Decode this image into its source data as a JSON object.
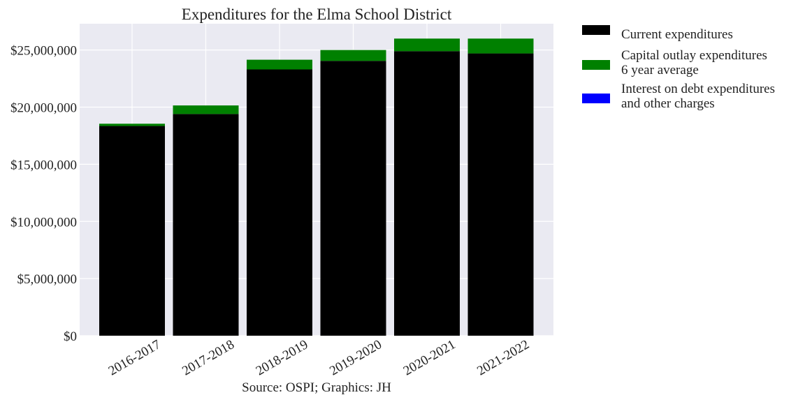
{
  "chart_data": {
    "type": "bar",
    "stacked": true,
    "title": "Expenditures for the Elma School District",
    "source": "Source: OSPI; Graphics: JH",
    "categories": [
      "2016-2017",
      "2017-2018",
      "2018-2019",
      "2019-2020",
      "2020-2021",
      "2021-2022"
    ],
    "series": [
      {
        "name": "Current expenditures",
        "color": "#000000",
        "values": [
          18350000,
          19400000,
          23300000,
          24050000,
          24900000,
          24700000
        ]
      },
      {
        "name": "Capital outlay expenditures 6 year average",
        "color": "#008000",
        "values": [
          200000,
          750000,
          850000,
          950000,
          1100000,
          1300000
        ]
      },
      {
        "name": "Interest on debt expenditures and other charges",
        "color": "#0000ff",
        "values": [
          0,
          0,
          0,
          0,
          0,
          0
        ]
      }
    ],
    "ylim": [
      0,
      27300000
    ],
    "yticks": [
      0,
      5000000,
      10000000,
      15000000,
      20000000,
      25000000
    ],
    "ytick_labels": [
      "$0",
      "$5,000,000",
      "$10,000,000",
      "$15,000,000",
      "$20,000,000",
      "$25,000,000"
    ],
    "xlabel": "",
    "ylabel": "",
    "legend_position": "outside-right-top",
    "legend": [
      {
        "label_lines": [
          "Current expenditures"
        ],
        "color": "#000000"
      },
      {
        "label_lines": [
          "Capital outlay expenditures",
          "6 year average"
        ],
        "color": "#008000"
      },
      {
        "label_lines": [
          "Interest on debt expenditures",
          "and other charges"
        ],
        "color": "#0000ff"
      }
    ],
    "grid": true,
    "background": "#eaeaf2"
  }
}
